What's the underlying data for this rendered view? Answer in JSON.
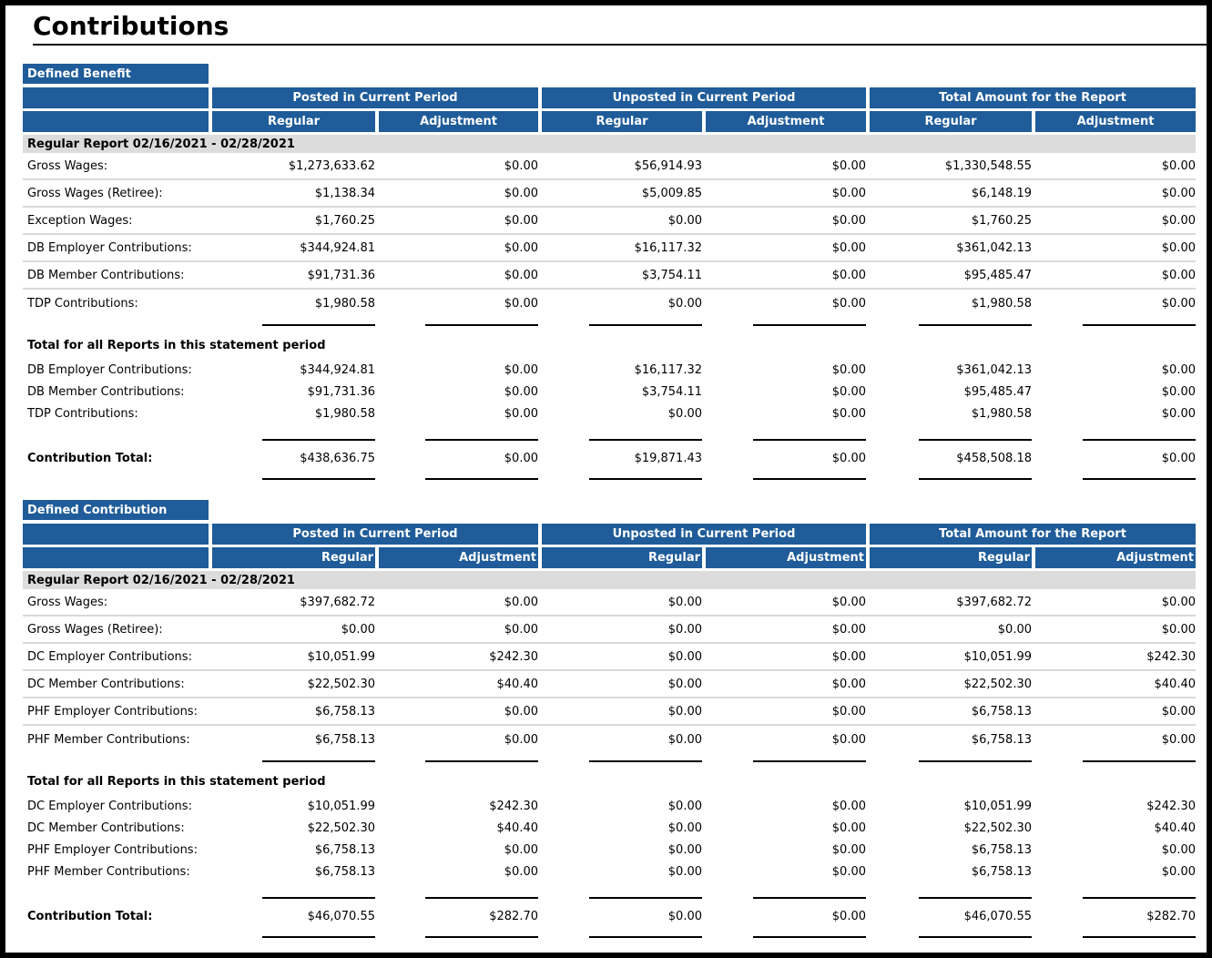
{
  "page": {
    "title": "Contributions"
  },
  "colors": {
    "header_blue": "#1F5C99",
    "band_gray": "#DCDCDC",
    "row_separator": "#D9D9D9"
  },
  "table_columns": {
    "group_headers": [
      "Posted in Current Period",
      "Unposted in Current Period",
      "Total Amount for the Report"
    ],
    "sub_headers": [
      "Regular",
      "Adjustment",
      "Regular",
      "Adjustment",
      "Regular",
      "Adjustment"
    ]
  },
  "sections": [
    {
      "title": "Defined Benefit",
      "report_label": "Regular Report 02/16/2021 - 02/28/2021",
      "rows": [
        {
          "label": "Gross Wages:",
          "values": [
            "$1,273,633.62",
            "$0.00",
            "$56,914.93",
            "$0.00",
            "$1,330,548.55",
            "$0.00"
          ]
        },
        {
          "label": "Gross Wages (Retiree):",
          "values": [
            "$1,138.34",
            "$0.00",
            "$5,009.85",
            "$0.00",
            "$6,148.19",
            "$0.00"
          ]
        },
        {
          "label": "Exception Wages:",
          "values": [
            "$1,760.25",
            "$0.00",
            "$0.00",
            "$0.00",
            "$1,760.25",
            "$0.00"
          ]
        },
        {
          "label": "DB Employer Contributions:",
          "values": [
            "$344,924.81",
            "$0.00",
            "$16,117.32",
            "$0.00",
            "$361,042.13",
            "$0.00"
          ]
        },
        {
          "label": "DB Member Contributions:",
          "values": [
            "$91,731.36",
            "$0.00",
            "$3,754.11",
            "$0.00",
            "$95,485.47",
            "$0.00"
          ]
        },
        {
          "label": "TDP Contributions:",
          "values": [
            "$1,980.58",
            "$0.00",
            "$0.00",
            "$0.00",
            "$1,980.58",
            "$0.00"
          ]
        }
      ],
      "totals_heading": "Total for all Reports in this statement period",
      "total_rows": [
        {
          "label": "DB Employer Contributions:",
          "values": [
            "$344,924.81",
            "$0.00",
            "$16,117.32",
            "$0.00",
            "$361,042.13",
            "$0.00"
          ]
        },
        {
          "label": "DB Member Contributions:",
          "values": [
            "$91,731.36",
            "$0.00",
            "$3,754.11",
            "$0.00",
            "$95,485.47",
            "$0.00"
          ]
        },
        {
          "label": "TDP Contributions:",
          "values": [
            "$1,980.58",
            "$0.00",
            "$0.00",
            "$0.00",
            "$1,980.58",
            "$0.00"
          ]
        }
      ],
      "contribution_total": {
        "label": "Contribution Total:",
        "values": [
          "$438,636.75",
          "$0.00",
          "$19,871.43",
          "$0.00",
          "$458,508.18",
          "$0.00"
        ]
      }
    },
    {
      "title": "Defined Contribution",
      "report_label": "Regular Report 02/16/2021 - 02/28/2021",
      "rows": [
        {
          "label": "Gross Wages:",
          "values": [
            "$397,682.72",
            "$0.00",
            "$0.00",
            "$0.00",
            "$397,682.72",
            "$0.00"
          ]
        },
        {
          "label": "Gross Wages (Retiree):",
          "values": [
            "$0.00",
            "$0.00",
            "$0.00",
            "$0.00",
            "$0.00",
            "$0.00"
          ]
        },
        {
          "label": "DC Employer Contributions:",
          "values": [
            "$10,051.99",
            "$242.30",
            "$0.00",
            "$0.00",
            "$10,051.99",
            "$242.30"
          ]
        },
        {
          "label": "DC Member Contributions:",
          "values": [
            "$22,502.30",
            "$40.40",
            "$0.00",
            "$0.00",
            "$22,502.30",
            "$40.40"
          ]
        },
        {
          "label": "PHF Employer Contributions:",
          "values": [
            "$6,758.13",
            "$0.00",
            "$0.00",
            "$0.00",
            "$6,758.13",
            "$0.00"
          ]
        },
        {
          "label": "PHF Member Contributions:",
          "values": [
            "$6,758.13",
            "$0.00",
            "$0.00",
            "$0.00",
            "$6,758.13",
            "$0.00"
          ]
        }
      ],
      "totals_heading": "Total for all Reports in this statement period",
      "total_rows": [
        {
          "label": "DC Employer Contributions:",
          "values": [
            "$10,051.99",
            "$242.30",
            "$0.00",
            "$0.00",
            "$10,051.99",
            "$242.30"
          ]
        },
        {
          "label": "DC Member Contributions:",
          "values": [
            "$22,502.30",
            "$40.40",
            "$0.00",
            "$0.00",
            "$22,502.30",
            "$40.40"
          ]
        },
        {
          "label": "PHF Employer Contributions:",
          "values": [
            "$6,758.13",
            "$0.00",
            "$0.00",
            "$0.00",
            "$6,758.13",
            "$0.00"
          ]
        },
        {
          "label": "PHF Member Contributions:",
          "values": [
            "$6,758.13",
            "$0.00",
            "$0.00",
            "$0.00",
            "$6,758.13",
            "$0.00"
          ]
        }
      ],
      "contribution_total": {
        "label": "Contribution Total:",
        "values": [
          "$46,070.55",
          "$282.70",
          "$0.00",
          "$0.00",
          "$46,070.55",
          "$282.70"
        ]
      }
    }
  ]
}
